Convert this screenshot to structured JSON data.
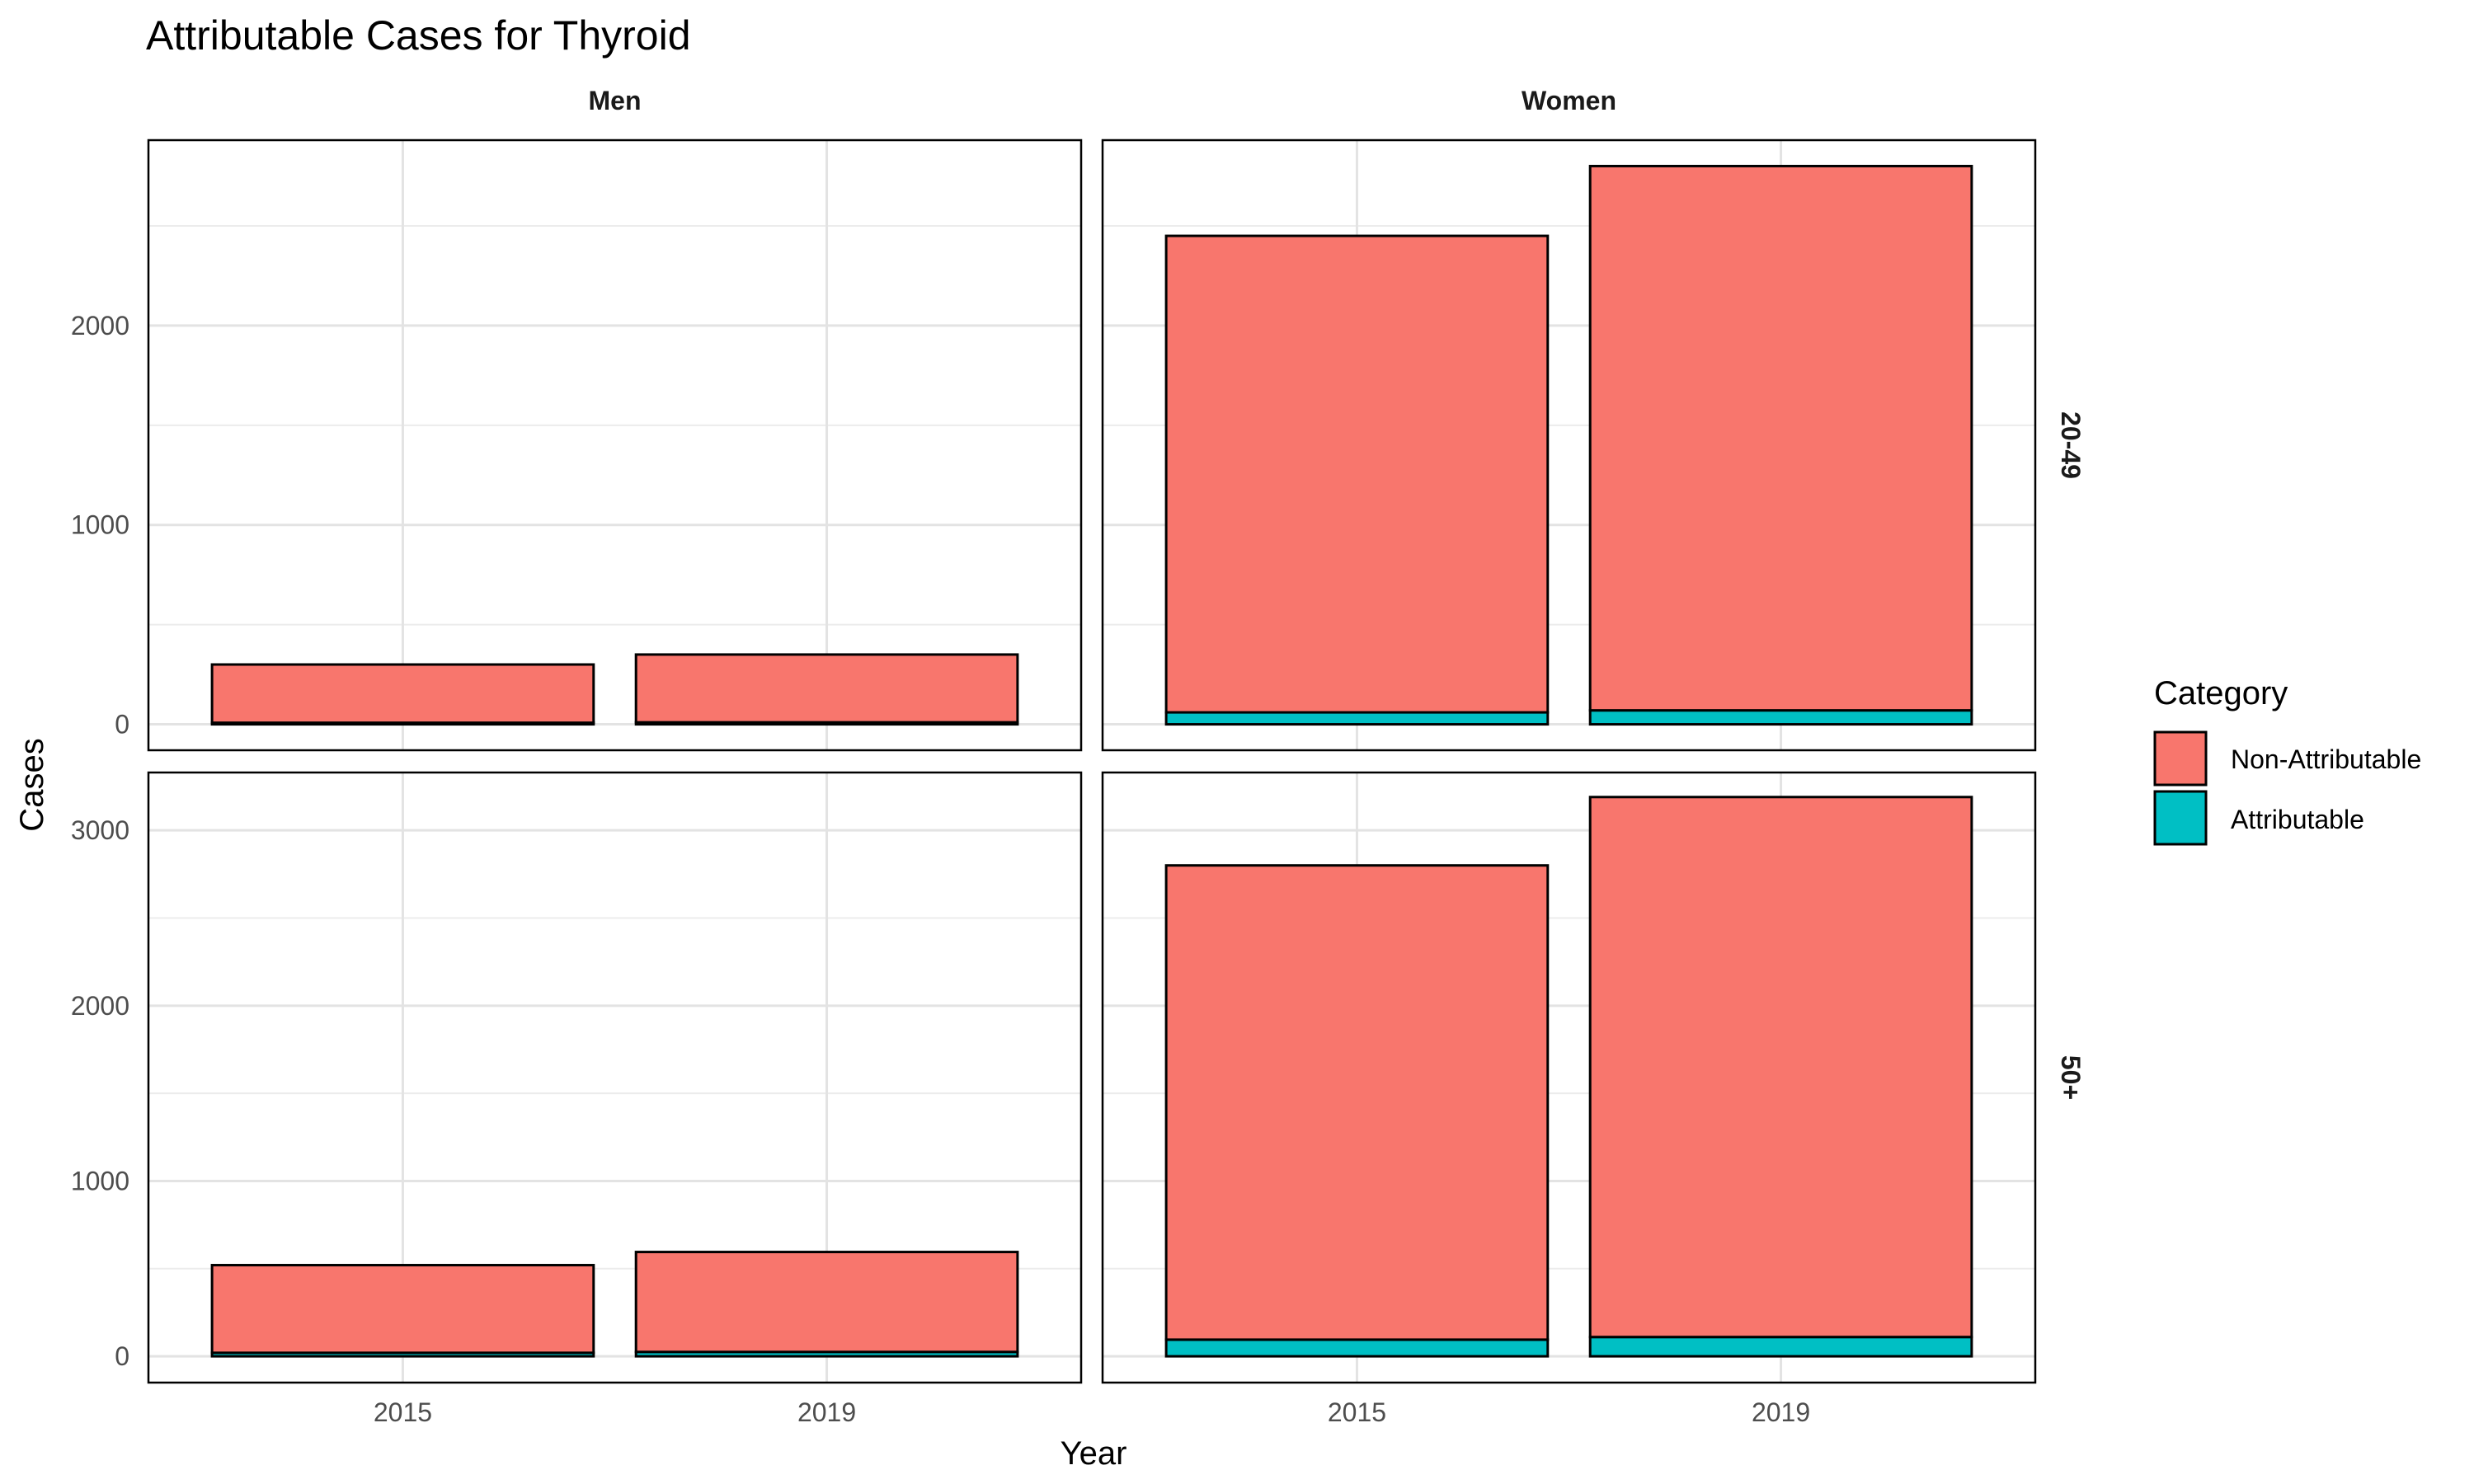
{
  "chart_data": {
    "type": "bar",
    "stacked": true,
    "title": "Attributable Cases for Thyroid",
    "xlabel": "Year",
    "ylabel": "Cases",
    "categories": [
      "2015",
      "2019"
    ],
    "grid": true,
    "legend": {
      "title": "Category",
      "placement": "right",
      "entries": [
        "Non-Attributable",
        "Attributable"
      ]
    },
    "colors": {
      "Non-Attributable": "#F8766D",
      "Attributable": "#00BFC4"
    },
    "facet_columns": [
      "Men",
      "Women"
    ],
    "facet_rows": [
      "20-49",
      "50+"
    ],
    "rows": [
      {
        "label": "20-49",
        "ylim": [
          -130,
          2930
        ],
        "yticks": [
          0,
          1000,
          2000
        ],
        "panels": [
          {
            "column": "Men",
            "series": [
              {
                "name": "Attributable",
                "values": [
                  8,
                  10
                ]
              },
              {
                "name": "Non-Attributable",
                "values": [
                  292,
                  340
                ]
              }
            ]
          },
          {
            "column": "Women",
            "series": [
              {
                "name": "Attributable",
                "values": [
                  60,
                  70
                ]
              },
              {
                "name": "Non-Attributable",
                "values": [
                  2390,
                  2730
                ]
              }
            ]
          }
        ]
      },
      {
        "label": "50+",
        "ylim": [
          -150,
          3330
        ],
        "yticks": [
          0,
          1000,
          2000,
          3000
        ],
        "panels": [
          {
            "column": "Men",
            "series": [
              {
                "name": "Attributable",
                "values": [
                  20,
                  25
                ]
              },
              {
                "name": "Non-Attributable",
                "values": [
                  500,
                  570
                ]
              }
            ]
          },
          {
            "column": "Women",
            "series": [
              {
                "name": "Attributable",
                "values": [
                  95,
                  110
                ]
              },
              {
                "name": "Non-Attributable",
                "values": [
                  2705,
                  3080
                ]
              }
            ]
          }
        ]
      }
    ]
  }
}
